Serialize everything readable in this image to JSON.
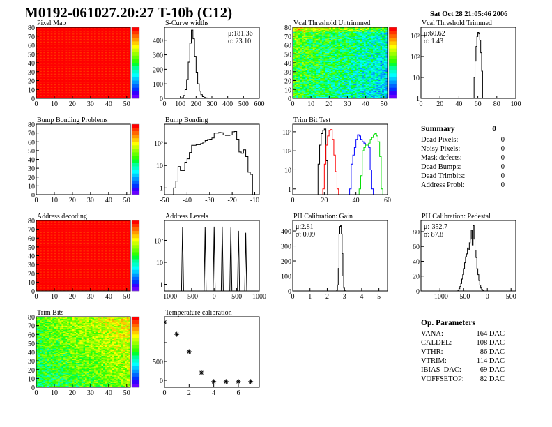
{
  "header": {
    "title": "M0192-061027.20:27 T-10b (C12)",
    "date": "Sat Oct 28 21:05:46 2006"
  },
  "summary": {
    "title": "Summary",
    "total": "0",
    "rows": [
      {
        "label": "Dead Pixels:",
        "value": "0"
      },
      {
        "label": "Noisy Pixels:",
        "value": "0"
      },
      {
        "label": "Mask defects:",
        "value": "0"
      },
      {
        "label": "Dead Bumps:",
        "value": "0"
      },
      {
        "label": "Dead Trimbits:",
        "value": "0"
      },
      {
        "label": "Address Probl:",
        "value": "0"
      }
    ]
  },
  "op_parameters": {
    "title": "Op. Parameters",
    "rows": [
      {
        "label": "VANA:",
        "value": "164 DAC"
      },
      {
        "label": "CALDEL:",
        "value": "108 DAC"
      },
      {
        "label": "VTHR:",
        "value": "86 DAC"
      },
      {
        "label": "VTRIM:",
        "value": "114 DAC"
      },
      {
        "label": "IBIAS_DAC:",
        "value": "69 DAC"
      },
      {
        "label": "VOFFSETOP:",
        "value": "82 DAC"
      }
    ]
  },
  "palette": [
    "#ff0000",
    "#ff3300",
    "#ff6600",
    "#ff9900",
    "#ffcc00",
    "#ffff00",
    "#ccff00",
    "#99ff00",
    "#66ff00",
    "#33ff00",
    "#00ff33",
    "#00ff99",
    "#00ffcc",
    "#00ffff",
    "#00ccff",
    "#0099ff",
    "#0066ff",
    "#0033ff",
    "#3300ff",
    "#6600ff"
  ],
  "chart_data": [
    {
      "id": "pixel_map",
      "type": "heatmap",
      "title": "Pixel Map",
      "xlim": [
        0,
        52
      ],
      "ylim": [
        0,
        80
      ],
      "xticks": [
        0,
        10,
        20,
        30,
        40,
        50
      ],
      "yticks": [
        0,
        10,
        20,
        30,
        40,
        50,
        60,
        70,
        80
      ],
      "fill": "uniform-max"
    },
    {
      "id": "scurve_widths",
      "type": "bar",
      "title": "S-Curve widths",
      "xlim": [
        0,
        600
      ],
      "ylim": [
        0,
        490
      ],
      "xticks": [
        0,
        100,
        200,
        300,
        400,
        500,
        600
      ],
      "yticks": [
        0,
        100,
        200,
        300,
        400
      ],
      "bins": {
        "x0": 100,
        "width": 10,
        "values": [
          1,
          5,
          20,
          60,
          130,
          250,
          380,
          470,
          410,
          290,
          180,
          100,
          50,
          25,
          12,
          6,
          3,
          1
        ]
      },
      "stats": [
        "μ:181.36",
        "σ: 23.10"
      ]
    },
    {
      "id": "vcal_untrimmed",
      "type": "heatmap",
      "title": "Vcal Threshold Untrimmed",
      "xlim": [
        0,
        52
      ],
      "ylim": [
        0,
        80
      ],
      "xticks": [
        0,
        10,
        20,
        30,
        40,
        50
      ],
      "yticks": [
        0,
        10,
        20,
        30,
        40,
        50,
        60,
        70,
        80
      ],
      "fill": "green-cyan-decreasing-right"
    },
    {
      "id": "vcal_trimmed",
      "type": "bar",
      "title": "Vcal Threshold Trimmed",
      "xlim": [
        0,
        100
      ],
      "ylim": [
        1,
        2500
      ],
      "log": true,
      "xticks": [
        0,
        20,
        40,
        60,
        80,
        100
      ],
      "yticks": [
        1,
        10,
        100,
        1000
      ],
      "ytick_labels": [
        "1",
        "10",
        "10²",
        "10³"
      ],
      "bins": {
        "x0": 55,
        "width": 1,
        "values": [
          1,
          10,
          60,
          300,
          900,
          1400,
          1200,
          600,
          150,
          20,
          1
        ]
      },
      "stats": [
        "μ:60.62",
        "σ: 1.43"
      ]
    },
    {
      "id": "bump_bonding_problems",
      "type": "heatmap",
      "title": "Bump Bonding Problems",
      "xlim": [
        0,
        52
      ],
      "ylim": [
        0,
        80
      ],
      "xticks": [
        0,
        10,
        20,
        30,
        40,
        50
      ],
      "yticks": [
        0,
        10,
        20,
        30,
        40,
        50,
        60,
        70,
        80
      ],
      "fill": "empty"
    },
    {
      "id": "bump_bonding",
      "type": "bar",
      "title": "Bump Bonding",
      "xlim": [
        -50,
        -8
      ],
      "ylim": [
        0.5,
        700
      ],
      "log": true,
      "xticks": [
        -50,
        -40,
        -30,
        -20,
        -10
      ],
      "yticks": [
        1,
        10,
        100
      ],
      "ytick_labels": [
        "1",
        "10",
        "10²"
      ],
      "bins": {
        "x0": -46,
        "width": 1,
        "values": [
          1,
          2,
          9,
          6,
          6,
          14,
          20,
          38,
          80,
          80,
          85,
          85,
          95,
          110,
          130,
          145,
          150,
          170,
          280,
          280,
          300,
          290,
          230,
          220,
          220,
          230,
          320,
          330,
          150,
          40,
          35,
          50,
          25,
          5,
          4
        ]
      }
    },
    {
      "id": "trim_bit_test",
      "type": "bar",
      "title": "Trim Bit Test",
      "xlim": [
        0,
        60
      ],
      "ylim": [
        0.5,
        2500
      ],
      "log": true,
      "xticks": [
        0,
        20,
        40,
        60
      ],
      "yticks": [
        1,
        10,
        100,
        1000
      ],
      "ytick_labels": [
        "1",
        "10",
        "10²",
        "10³"
      ],
      "series": [
        {
          "color": "#000000",
          "bins": {
            "x0": 16,
            "width": 1,
            "values": [
              20,
              200,
              800,
              1200,
              1400,
              30
            ]
          }
        },
        {
          "color": "#ff0000",
          "bins": {
            "x0": 19,
            "width": 1,
            "values": [
              1,
              20,
              200,
              600,
              1200,
              1300,
              400,
              60,
              8,
              1
            ]
          }
        },
        {
          "color": "#0000ff",
          "bins": {
            "x0": 36,
            "width": 1,
            "values": [
              1,
              20,
              60,
              150,
              400,
              700,
              600,
              400,
              300,
              250,
              200,
              200,
              150,
              10,
              1
            ]
          }
        },
        {
          "color": "#00dd00",
          "bins": {
            "x0": 42,
            "width": 1,
            "values": [
              1,
              5,
              100,
              150,
              200,
              200,
              250,
              400,
              500,
              700,
              800,
              600,
              300,
              50,
              1
            ]
          }
        }
      ]
    },
    {
      "id": "address_decoding",
      "type": "heatmap",
      "title": "Address decoding",
      "xlim": [
        0,
        52
      ],
      "ylim": [
        0,
        80
      ],
      "xticks": [
        0,
        10,
        20,
        30,
        40,
        50
      ],
      "yticks": [
        0,
        10,
        20,
        30,
        40,
        50,
        60,
        70,
        80
      ],
      "fill": "uniform-max"
    },
    {
      "id": "address_levels",
      "type": "bar",
      "title": "Address Levels",
      "xlim": [
        -1100,
        1000
      ],
      "ylim": [
        0.5,
        800
      ],
      "log": true,
      "xticks": [
        -1000,
        -500,
        0,
        500,
        1000
      ],
      "yticks": [
        1,
        10,
        100
      ],
      "ytick_labels": [
        "1",
        "10",
        "10²"
      ],
      "peaks": [
        {
          "x": -700,
          "y": 400
        },
        {
          "x": -200,
          "y": 400
        },
        {
          "x": 0,
          "y": 420
        },
        {
          "x": 180,
          "y": 420
        },
        {
          "x": 370,
          "y": 380
        },
        {
          "x": 540,
          "y": 270
        },
        {
          "x": 700,
          "y": 220
        }
      ]
    },
    {
      "id": "ph_gain",
      "type": "bar",
      "title": "PH Calibration: Gain",
      "xlim": [
        0,
        5.5
      ],
      "ylim": [
        0,
        470
      ],
      "xticks": [
        0,
        1,
        2,
        3,
        4,
        5
      ],
      "yticks": [
        0,
        100,
        200,
        300,
        400
      ],
      "bins": {
        "x0": 2.55,
        "width": 0.045,
        "values": [
          5,
          40,
          150,
          380,
          430,
          440,
          380,
          250,
          100,
          20,
          2
        ]
      },
      "stats": [
        "μ:2.81",
        "σ: 0.09"
      ]
    },
    {
      "id": "ph_pedestal",
      "type": "bar",
      "title": "PH Calibration: Pedestal",
      "xlim": [
        -1400,
        600
      ],
      "ylim": [
        0,
        95
      ],
      "xticks": [
        -1000,
        -500,
        0,
        500
      ],
      "yticks": [
        0,
        20,
        40,
        60,
        80
      ],
      "bins": {
        "x0": -620,
        "width": 20,
        "values": [
          1,
          3,
          6,
          10,
          16,
          22,
          30,
          38,
          46,
          50,
          58,
          55,
          65,
          70,
          82,
          62,
          88,
          70,
          55,
          45,
          30,
          22,
          14,
          8,
          4,
          2,
          1
        ]
      },
      "stats": [
        "μ:-352.7",
        "σ: 87.8"
      ]
    },
    {
      "id": "trim_bits",
      "type": "heatmap",
      "title": "Trim Bits",
      "xlim": [
        0,
        52
      ],
      "ylim": [
        0,
        80
      ],
      "xticks": [
        0,
        10,
        20,
        30,
        40,
        50
      ],
      "yticks": [
        0,
        10,
        20,
        30,
        40,
        50,
        60,
        70,
        80
      ],
      "fill": "green-yellow"
    },
    {
      "id": "temperature_calibration",
      "type": "scatter",
      "title": "Temperature calibration",
      "xlim": [
        0,
        7.7
      ],
      "ylim": [
        -185,
        1685
      ],
      "xticks": [
        0,
        2,
        4,
        6
      ],
      "yticks": [
        0,
        500
      ],
      "ytick_minor": [
        1000
      ],
      "points": [
        {
          "x": 0,
          "y": 1540
        },
        {
          "x": 1,
          "y": 1220
        },
        {
          "x": 2,
          "y": 760
        },
        {
          "x": 3,
          "y": 200
        },
        {
          "x": 4,
          "y": -35
        },
        {
          "x": 5,
          "y": -35
        },
        {
          "x": 6,
          "y": -35
        },
        {
          "x": 7,
          "y": -35
        }
      ]
    }
  ]
}
